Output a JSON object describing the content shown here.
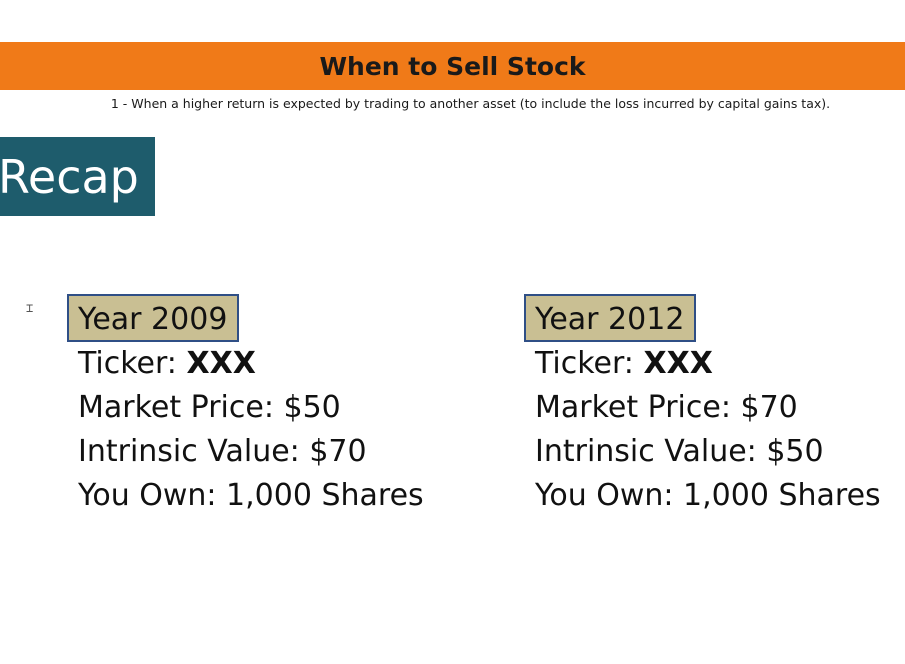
{
  "slide": {
    "title": "When to Sell Stock",
    "subtitle": "1 - When a higher return is expected by trading to another asset (to include the loss incurred by capital gains tax).",
    "section_label": "Recap",
    "accent_color": "#f07a18",
    "section_color": "#1e5c6c"
  },
  "scenarios": [
    {
      "year": "Year 2009",
      "ticker_label": "Ticker: ",
      "ticker": "XXX",
      "market_price": "Market Price: $50",
      "intrinsic_value": "Intrinsic Value: $70",
      "owned": "You Own: 1,000 Shares"
    },
    {
      "year": "Year 2012",
      "ticker_label": "Ticker: ",
      "ticker": "XXX",
      "market_price": "Market Price: $70",
      "intrinsic_value": "Intrinsic Value: $50",
      "owned": "You Own: 1,000 Shares"
    }
  ],
  "cursor_icon": "text-cursor-icon"
}
